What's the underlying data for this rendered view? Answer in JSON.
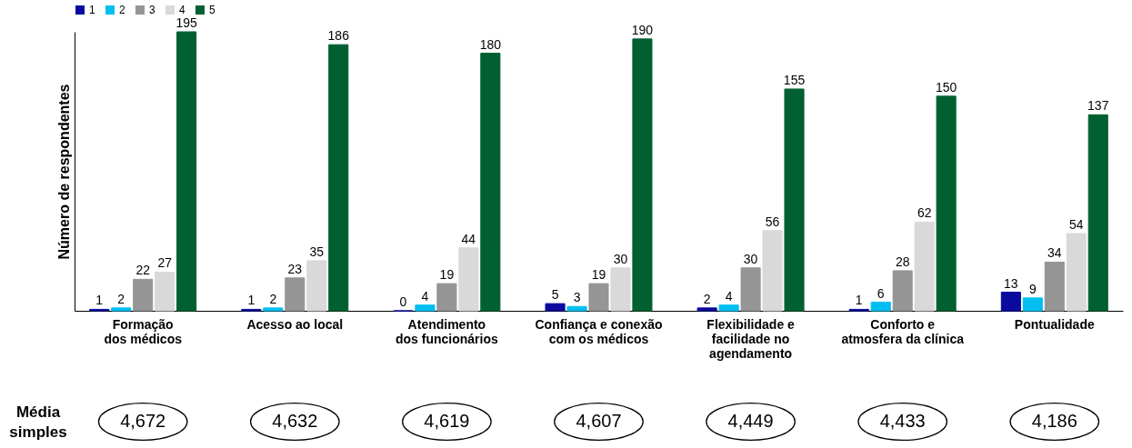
{
  "chart_data": {
    "type": "bar",
    "ylabel": "Número de respondentes",
    "categories": [
      "Formação\ndos médicos",
      "Acesso ao local",
      "Atendimento\ndos funcionários",
      "Confiança e conexão\ncom os médicos",
      "Flexibilidade e\nfacilidade no\nagendamento",
      "Conforto e\natmosfera da clínica",
      "Pontualidade"
    ],
    "series": [
      {
        "name": "1",
        "color": "#0a0a9e",
        "values": [
          1,
          1,
          0,
          5,
          2,
          1,
          13
        ]
      },
      {
        "name": "2",
        "color": "#00bff0",
        "values": [
          2,
          2,
          4,
          3,
          4,
          6,
          9
        ]
      },
      {
        "name": "3",
        "color": "#959595",
        "values": [
          22,
          23,
          19,
          19,
          30,
          28,
          34
        ]
      },
      {
        "name": "4",
        "color": "#d9d9d9",
        "values": [
          27,
          35,
          44,
          30,
          56,
          62,
          54
        ]
      },
      {
        "name": "5",
        "color": "#006031",
        "values": [
          195,
          186,
          180,
          190,
          155,
          150,
          137
        ]
      }
    ],
    "data_labels": true,
    "legend": "top left",
    "grid": false,
    "annotations": [
      "Média simples",
      "4,672",
      "4,632",
      "4,619",
      "4,607",
      "4,449",
      "4,433",
      "4,186"
    ]
  }
}
